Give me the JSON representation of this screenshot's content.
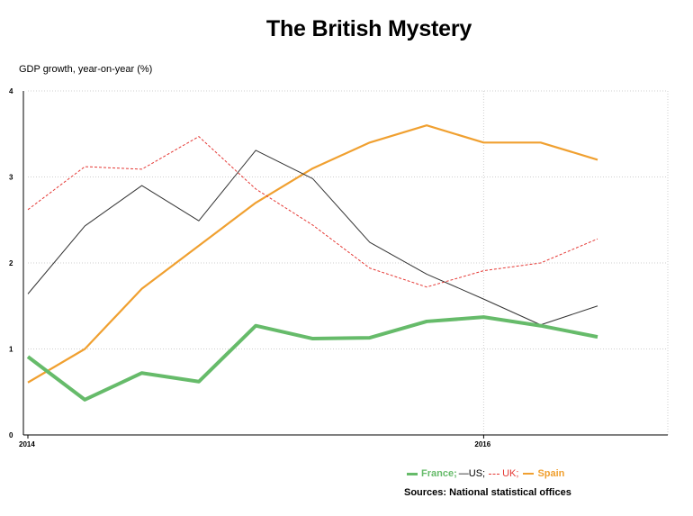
{
  "chart_data": {
    "type": "line",
    "title": "The British Mystery",
    "ylabel": "GDP growth, year-on-year (%)",
    "xlabel": "",
    "ylim": [
      0,
      4
    ],
    "yticks": [
      "0",
      "1",
      "2",
      "3",
      "4"
    ],
    "xticks": [
      "2014",
      "2016"
    ],
    "x": [
      0,
      1,
      2,
      3,
      4,
      5,
      6,
      7,
      8,
      9,
      10
    ],
    "grid": true,
    "legend_position": "bottom-right",
    "series": [
      {
        "name": "France",
        "color": "#66bb6a",
        "style": "thick",
        "values": [
          0.91,
          0.41,
          0.72,
          0.62,
          1.27,
          1.12,
          1.13,
          1.32,
          1.37,
          1.27,
          1.14
        ]
      },
      {
        "name": "US",
        "color": "#333333",
        "style": "thin",
        "values": [
          1.64,
          2.43,
          2.9,
          2.49,
          3.31,
          2.98,
          2.24,
          1.87,
          1.58,
          1.28,
          1.5
        ]
      },
      {
        "name": "UK",
        "color": "#e53935",
        "style": "dashed",
        "values": [
          2.62,
          3.12,
          3.09,
          3.47,
          2.86,
          2.44,
          1.94,
          1.72,
          1.91,
          2.0,
          2.28
        ]
      },
      {
        "name": "Spain",
        "color": "#f0a030",
        "style": "medium",
        "values": [
          0.61,
          1.0,
          1.7,
          2.2,
          2.7,
          3.1,
          3.4,
          3.6,
          3.4,
          3.4,
          3.2
        ]
      }
    ]
  },
  "legend": {
    "france": "France;",
    "us": "—US;",
    "uk": "UK;",
    "spain": "Spain"
  },
  "source": "Sources: National statistical offices"
}
